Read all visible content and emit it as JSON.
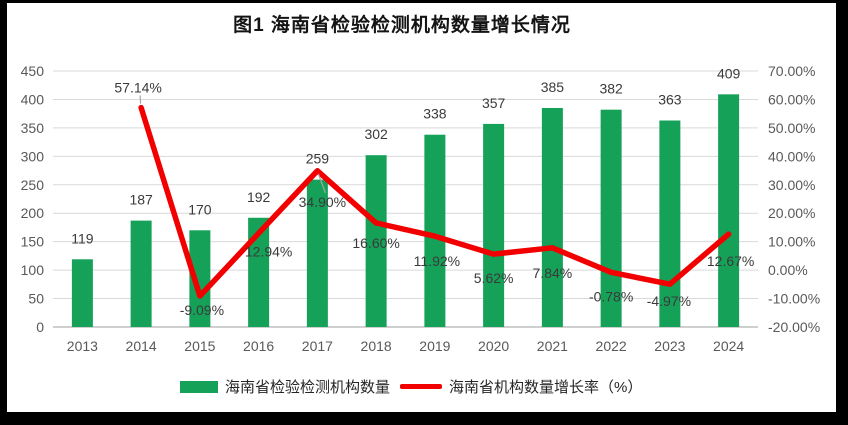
{
  "title": "图1 海南省检验检测机构数量增长情况",
  "chart_data": {
    "type": "bar+line combo",
    "categories": [
      "2013",
      "2014",
      "2015",
      "2016",
      "2017",
      "2018",
      "2019",
      "2020",
      "2021",
      "2022",
      "2023",
      "2024"
    ],
    "series": [
      {
        "name": "海南省检验检测机构数量",
        "render": "bar",
        "axis": "left",
        "color": "#16a159",
        "values": [
          119,
          187,
          170,
          192,
          259,
          302,
          338,
          357,
          385,
          382,
          363,
          409
        ],
        "value_labels": [
          "119",
          "187",
          "170",
          "192",
          "259",
          "302",
          "338",
          "357",
          "385",
          "382",
          "363",
          "409"
        ]
      },
      {
        "name": "海南省机构数量增长率（%）",
        "render": "line",
        "axis": "right",
        "color": "#f20000",
        "values": [
          null,
          57.14,
          -9.09,
          12.94,
          34.9,
          16.6,
          11.92,
          5.62,
          7.84,
          -0.78,
          -4.97,
          12.67
        ],
        "value_labels": [
          null,
          "57.14%",
          "-9.09%",
          "12.94%",
          "34.90%",
          "16.60%",
          "11.92%",
          "5.62%",
          "7.84%",
          "-0.78%",
          "-4.97%",
          "12.67%"
        ]
      }
    ],
    "left_axis": {
      "min": 0,
      "max": 450,
      "step": 50,
      "tick_labels": [
        "450",
        "400",
        "350",
        "300",
        "250",
        "200",
        "150",
        "100",
        "50",
        "0"
      ]
    },
    "right_axis": {
      "min": -20,
      "max": 70,
      "step": 10,
      "tick_labels": [
        "70.00%",
        "60.00%",
        "50.00%",
        "40.00%",
        "30.00%",
        "20.00%",
        "10.00%",
        "0.00%",
        "-10.00%",
        "-20.00%"
      ]
    },
    "grid": "horizontal",
    "legend_position": "bottom",
    "title": "图1 海南省检验检测机构数量增长情况"
  },
  "legend": {
    "items": [
      {
        "label": "海南省检验检测机构数量",
        "swatch": "bar",
        "color": "#16a159"
      },
      {
        "label": "海南省机构数量增长率（%）",
        "swatch": "line",
        "color": "#f20000"
      }
    ]
  },
  "colors": {
    "bar_green": "#16a159",
    "line_red": "#f20000",
    "gridline": "#d9d9d9",
    "zero_line": "#bfbfbf",
    "axis_text": "#595959",
    "data_label_text": "#3a3a3a",
    "background": "#ffffff",
    "frame": "#000000"
  }
}
